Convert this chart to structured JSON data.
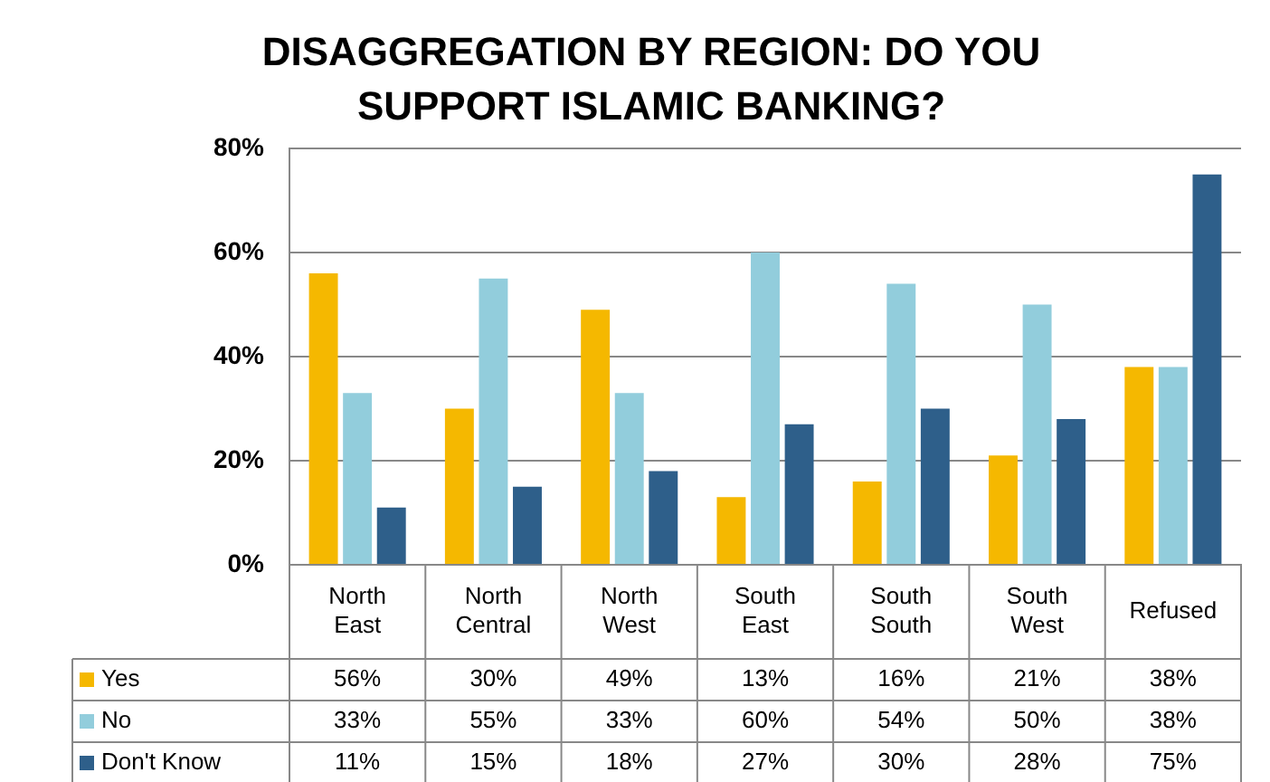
{
  "chart_data": {
    "type": "bar",
    "title": "DISAGGREGATION BY REGION: DO YOU SUPPORT ISLAMIC BANKING?",
    "categories": [
      "North East",
      "North Central",
      "North West",
      "South East",
      "South South",
      "South West",
      "Refused"
    ],
    "series": [
      {
        "name": "Yes",
        "color": "#f5b800",
        "values": [
          56,
          30,
          49,
          13,
          16,
          21,
          38
        ],
        "value_labels": [
          "56%",
          "30%",
          "49%",
          "13%",
          "16%",
          "21%",
          "38%"
        ]
      },
      {
        "name": "No",
        "color": "#92cddc",
        "values": [
          33,
          55,
          33,
          60,
          54,
          50,
          38
        ],
        "value_labels": [
          "33%",
          "55%",
          "33%",
          "60%",
          "54%",
          "50%",
          "38%"
        ]
      },
      {
        "name": "Don't Know",
        "color": "#2e5f8a",
        "values": [
          11,
          15,
          18,
          27,
          30,
          28,
          75
        ],
        "value_labels": [
          "11%",
          "15%",
          "18%",
          "27%",
          "30%",
          "28%",
          "75%"
        ]
      }
    ],
    "ylim": [
      0,
      80
    ],
    "yticks": [
      {
        "value": 0,
        "label": "0%"
      },
      {
        "value": 20,
        "label": "20%"
      },
      {
        "value": 40,
        "label": "40%"
      },
      {
        "value": 60,
        "label": "60%"
      },
      {
        "value": 80,
        "label": "80%"
      }
    ],
    "grid": "y",
    "legend": "bottom"
  }
}
